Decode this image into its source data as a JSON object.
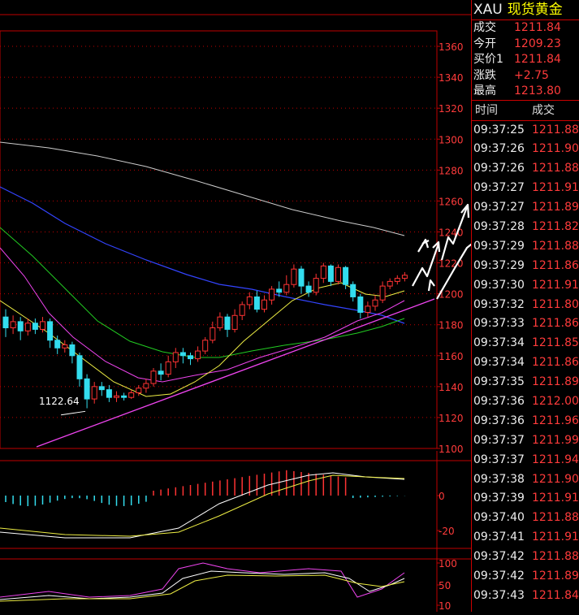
{
  "chart": {
    "price_axis": [
      "1360",
      "1340",
      "1320",
      "1300",
      "1280",
      "1260",
      "1240",
      "1220",
      "1200",
      "1180",
      "1160",
      "1140",
      "1120",
      "1100"
    ],
    "macd_axis": [
      "0",
      "-20"
    ],
    "kd_axis": [
      "100",
      "50",
      "10"
    ],
    "low_annotation": "1122.64",
    "colors": {
      "up": "#ff3333",
      "down": "#33ddee",
      "grid": "#c00000",
      "ma_white": "#cccccc",
      "ma_blue": "#3344ff",
      "ma_green": "#22cc22",
      "ma_magenta": "#ee44ee",
      "ma_yellow": "#eeee44"
    }
  },
  "quote": {
    "symbol": "XAU",
    "name": "现货黄金",
    "rows": [
      {
        "label": "成交",
        "value": "1211.84"
      },
      {
        "label": "今开",
        "value": "1209.23"
      },
      {
        "label": "买价1",
        "value": "1211.84"
      },
      {
        "label": "涨跌",
        "value": "+2.75"
      },
      {
        "label": "最高",
        "value": "1213.80"
      }
    ]
  },
  "ticks": {
    "headers": [
      "时间",
      "成交"
    ],
    "rows": [
      {
        "time": "09:37:25",
        "price": "1211.88"
      },
      {
        "time": "09:37:26",
        "price": "1211.90"
      },
      {
        "time": "09:37:26",
        "price": "1211.88"
      },
      {
        "time": "09:37:27",
        "price": "1211.91"
      },
      {
        "time": "09:37:27",
        "price": "1211.89"
      },
      {
        "time": "09:37:28",
        "price": "1211.82"
      },
      {
        "time": "09:37:29",
        "price": "1211.88"
      },
      {
        "time": "09:37:29",
        "price": "1211.86"
      },
      {
        "time": "09:37:30",
        "price": "1211.91"
      },
      {
        "time": "09:37:32",
        "price": "1211.80"
      },
      {
        "time": "09:37:33",
        "price": "1211.86"
      },
      {
        "time": "09:37:34",
        "price": "1211.85"
      },
      {
        "time": "09:37:34",
        "price": "1211.86"
      },
      {
        "time": "09:37:35",
        "price": "1211.89"
      },
      {
        "time": "09:37:36",
        "price": "1212.00"
      },
      {
        "time": "09:37:36",
        "price": "1211.96"
      },
      {
        "time": "09:37:37",
        "price": "1211.99"
      },
      {
        "time": "09:37:37",
        "price": "1211.94"
      },
      {
        "time": "09:37:38",
        "price": "1211.90"
      },
      {
        "time": "09:37:39",
        "price": "1211.91"
      },
      {
        "time": "09:37:40",
        "price": "1211.88"
      },
      {
        "time": "09:37:41",
        "price": "1211.91"
      },
      {
        "time": "09:37:42",
        "price": "1211.88"
      },
      {
        "time": "09:37:42",
        "price": "1211.89"
      },
      {
        "time": "09:37:43",
        "price": "1211.84"
      }
    ]
  },
  "candles": [
    [
      1185,
      1178,
      1190,
      1172
    ],
    [
      1178,
      1182,
      1186,
      1174
    ],
    [
      1182,
      1176,
      1185,
      1170
    ],
    [
      1176,
      1181,
      1184,
      1173
    ],
    [
      1181,
      1177,
      1184,
      1174
    ],
    [
      1177,
      1182,
      1185,
      1175
    ],
    [
      1182,
      1170,
      1184,
      1165
    ],
    [
      1170,
      1165,
      1173,
      1161
    ],
    [
      1165,
      1167,
      1170,
      1162
    ],
    [
      1167,
      1160,
      1169,
      1155
    ],
    [
      1160,
      1145,
      1162,
      1140
    ],
    [
      1145,
      1132,
      1148,
      1126
    ],
    [
      1132,
      1140,
      1143,
      1129
    ],
    [
      1140,
      1138,
      1143,
      1134
    ],
    [
      1138,
      1133,
      1141,
      1130
    ],
    [
      1133,
      1134,
      1137,
      1130
    ],
    [
      1134,
      1133,
      1136,
      1131
    ],
    [
      1133,
      1136,
      1138,
      1132
    ],
    [
      1136,
      1139,
      1141,
      1134
    ],
    [
      1139,
      1142,
      1145,
      1136
    ],
    [
      1142,
      1150,
      1152,
      1140
    ],
    [
      1150,
      1148,
      1155,
      1144
    ],
    [
      1148,
      1156,
      1160,
      1146
    ],
    [
      1156,
      1162,
      1165,
      1152
    ],
    [
      1162,
      1160,
      1165,
      1155
    ],
    [
      1160,
      1158,
      1162,
      1154
    ],
    [
      1158,
      1163,
      1166,
      1156
    ],
    [
      1163,
      1170,
      1172,
      1161
    ],
    [
      1170,
      1178,
      1182,
      1168
    ],
    [
      1178,
      1185,
      1188,
      1176
    ],
    [
      1185,
      1177,
      1187,
      1172
    ],
    [
      1177,
      1186,
      1190,
      1175
    ],
    [
      1186,
      1193,
      1195,
      1183
    ],
    [
      1193,
      1198,
      1201,
      1190
    ],
    [
      1198,
      1190,
      1202,
      1188
    ],
    [
      1190,
      1196,
      1199,
      1188
    ],
    [
      1196,
      1203,
      1205,
      1193
    ],
    [
      1203,
      1201,
      1208,
      1198
    ],
    [
      1201,
      1206,
      1212,
      1199
    ],
    [
      1206,
      1216,
      1219,
      1204
    ],
    [
      1216,
      1205,
      1218,
      1200
    ],
    [
      1205,
      1201,
      1208,
      1198
    ],
    [
      1201,
      1210,
      1213,
      1199
    ],
    [
      1210,
      1218,
      1220,
      1207
    ],
    [
      1218,
      1208,
      1219,
      1205
    ],
    [
      1208,
      1217,
      1219,
      1206
    ],
    [
      1217,
      1206,
      1218,
      1203
    ],
    [
      1206,
      1198,
      1208,
      1195
    ],
    [
      1198,
      1188,
      1200,
      1184
    ],
    [
      1188,
      1192,
      1195,
      1185
    ],
    [
      1192,
      1196,
      1199,
      1189
    ],
    [
      1196,
      1205,
      1208,
      1194
    ],
    [
      1205,
      1208,
      1210,
      1203
    ],
    [
      1208,
      1210,
      1212,
      1206
    ],
    [
      1210,
      1212,
      1214,
      1208
    ]
  ]
}
